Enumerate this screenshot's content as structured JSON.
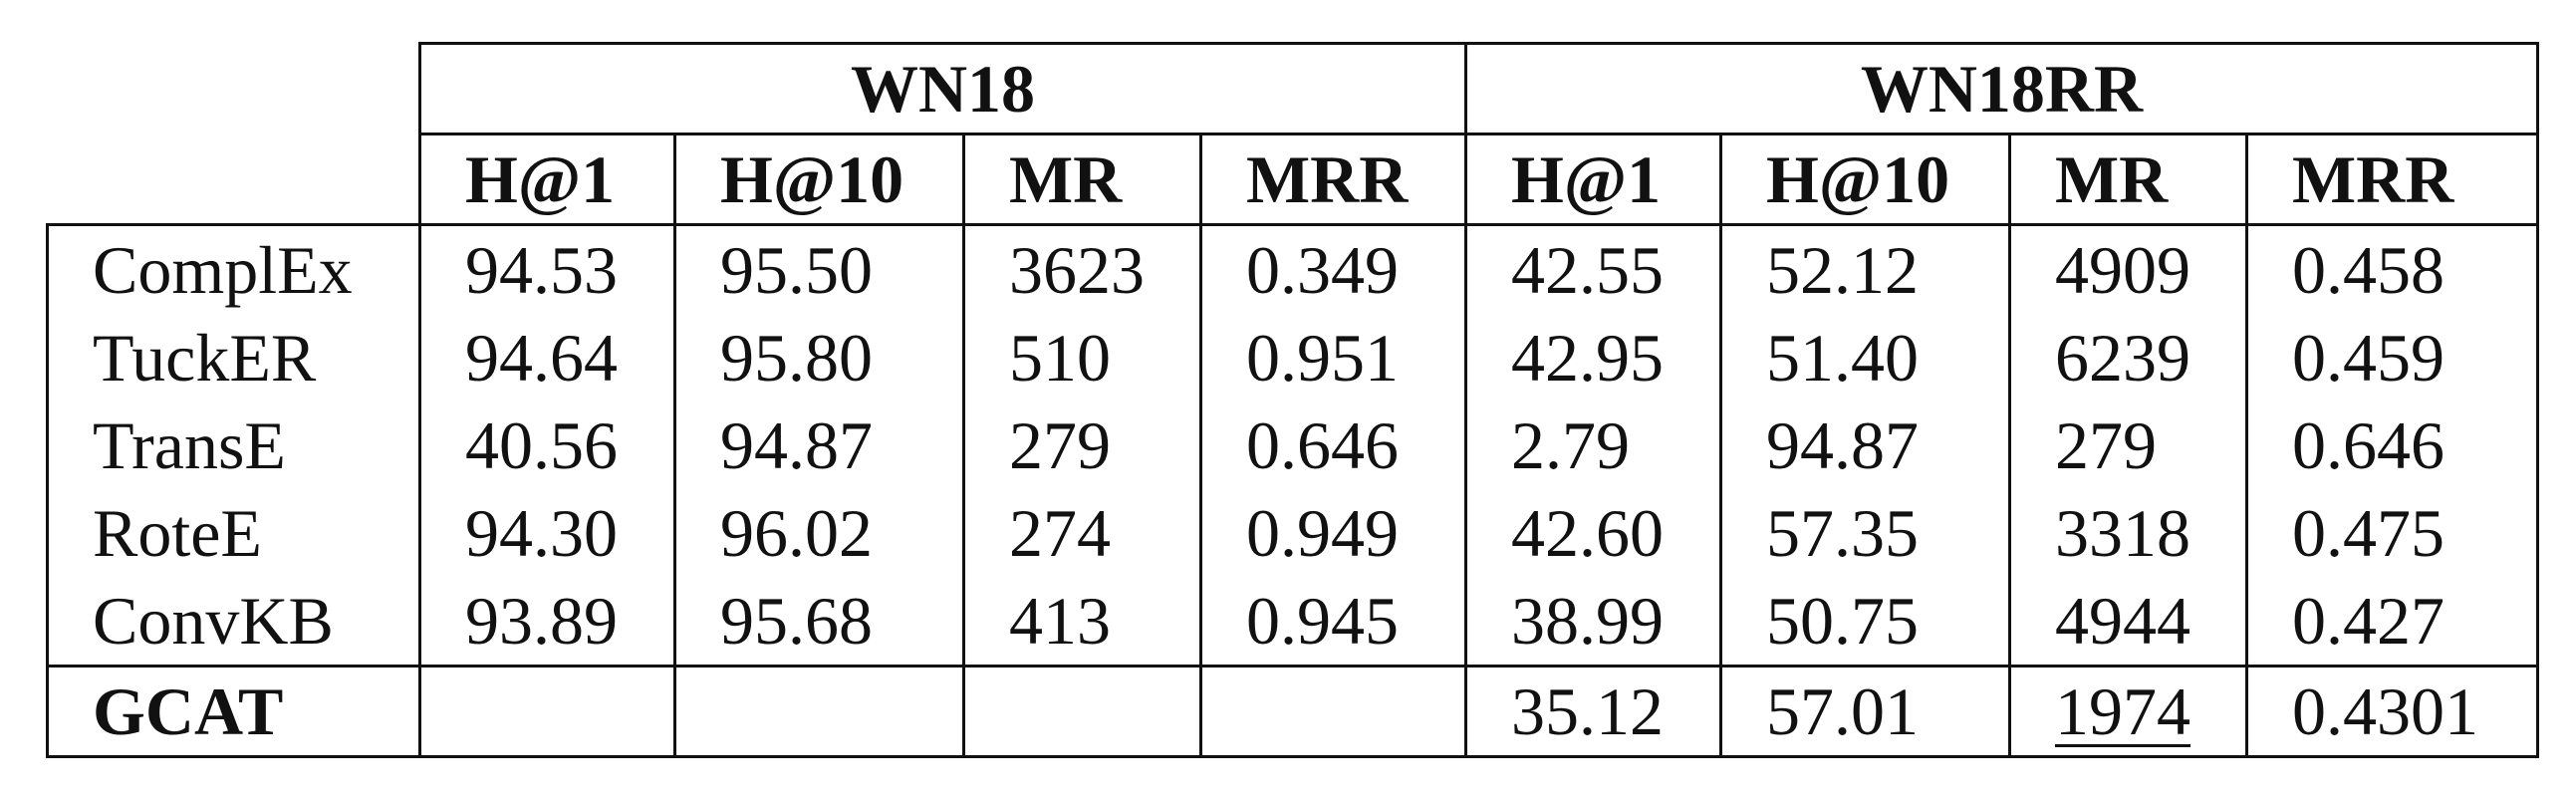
{
  "table": {
    "groups": [
      "WN18",
      "WN18RR"
    ],
    "metrics": [
      "H@1",
      "H@10",
      "MR",
      "MRR"
    ],
    "rows": [
      {
        "model": "ComplEx",
        "values": [
          "94.53",
          "95.50",
          "3623",
          "0.349",
          "42.55",
          "52.12",
          "4909",
          "0.458"
        ]
      },
      {
        "model": "TuckER",
        "values": [
          "94.64",
          "95.80",
          "510",
          "0.951",
          "42.95",
          "51.40",
          "6239",
          "0.459"
        ]
      },
      {
        "model": "TransE",
        "values": [
          "40.56",
          "94.87",
          "279",
          "0.646",
          "2.79",
          "94.87",
          "279",
          "0.646"
        ]
      },
      {
        "model": "RoteE",
        "values": [
          "94.30",
          "96.02",
          "274",
          "0.949",
          "42.60",
          "57.35",
          "3318",
          "0.475"
        ]
      },
      {
        "model": "ConvKB",
        "values": [
          "93.89",
          "95.68",
          "413",
          "0.945",
          "38.99",
          "50.75",
          "4944",
          "0.427"
        ]
      },
      {
        "model": "GCAT",
        "values": [
          "",
          "",
          "",
          "",
          "35.12",
          "57.01",
          "1974",
          "0.4301"
        ]
      }
    ]
  }
}
